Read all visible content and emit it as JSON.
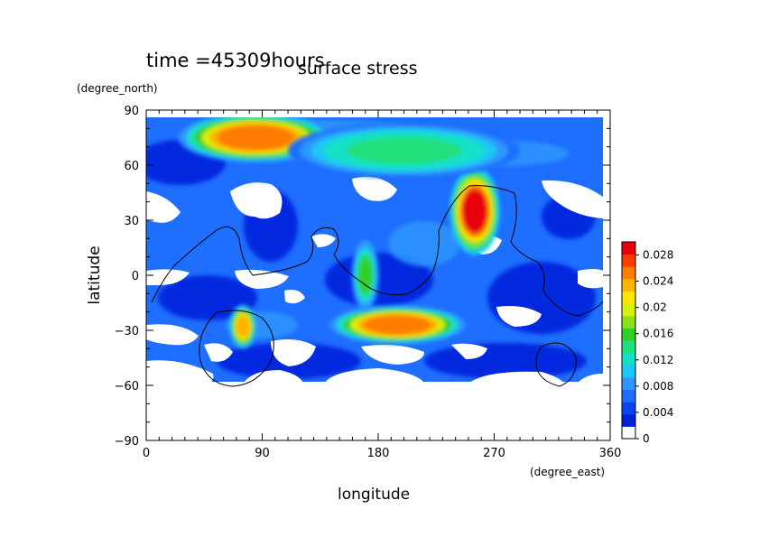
{
  "chart_data": {
    "type": "heatmap",
    "title": "surface stress",
    "time_label": "time =45309hours",
    "xlabel": "longitude",
    "xunit": "(degree_east)",
    "ylabel": "latitude",
    "yunit": "(degree_north)",
    "xlim": [
      0,
      360
    ],
    "ylim": [
      -90,
      90
    ],
    "xticks": [
      "0",
      "90",
      "180",
      "270",
      "360"
    ],
    "yticks": [
      "90",
      "60",
      "30",
      "0",
      "−30",
      "−60",
      "−90"
    ],
    "colorbar": {
      "range": [
        0,
        0.03
      ],
      "tick_labels": [
        "0.028",
        "0.024",
        "0.02",
        "0.016",
        "0.012",
        "0.008",
        "0.004",
        "0"
      ],
      "tick_values": [
        0.028,
        0.024,
        0.02,
        0.016,
        0.012,
        0.008,
        0.004,
        0
      ],
      "colors": [
        "#ffffff",
        "#0022dd",
        "#0a44f0",
        "#1e6eff",
        "#2e96ff",
        "#1ec8f5",
        "#12e0c8",
        "#20e07c",
        "#30d028",
        "#8ce01e",
        "#d8f010",
        "#ffe600",
        "#ffb400",
        "#ff7c00",
        "#ff3c00",
        "#e8000a"
      ]
    },
    "hotspots": [
      {
        "lon": 85,
        "lat": 75,
        "value": 0.026,
        "rlon": 40,
        "rlat": 9
      },
      {
        "lon": 255,
        "lat": 35,
        "value": 0.03,
        "rlon": 13,
        "rlat": 16
      },
      {
        "lon": 195,
        "lat": -27,
        "value": 0.026,
        "rlon": 35,
        "rlat": 7
      },
      {
        "lon": 75,
        "lat": -28,
        "value": 0.024,
        "rlon": 7,
        "rlat": 8
      },
      {
        "lon": 170,
        "lat": 0,
        "value": 0.016,
        "rlon": 7,
        "rlat": 13
      },
      {
        "lon": 200,
        "lat": 68,
        "value": 0.014,
        "rlon": 60,
        "rlat": 10
      }
    ]
  }
}
